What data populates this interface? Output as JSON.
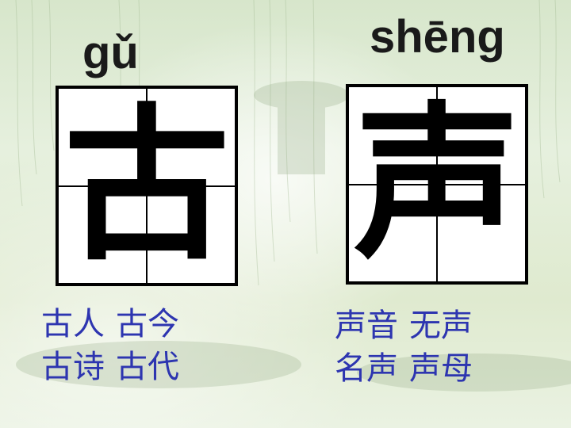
{
  "left": {
    "pinyin": "gǔ",
    "character": "古",
    "words_row1": [
      "古人",
      "古今"
    ],
    "words_row2": [
      "古诗",
      "古代"
    ]
  },
  "right": {
    "pinyin": "shēng",
    "character": "声",
    "words_row1": [
      "声音",
      "无声"
    ],
    "words_row2": [
      "名声",
      "声母"
    ]
  },
  "colors": {
    "words": "#2d35b0",
    "grid": "#000000",
    "background": "#e3eed9"
  }
}
